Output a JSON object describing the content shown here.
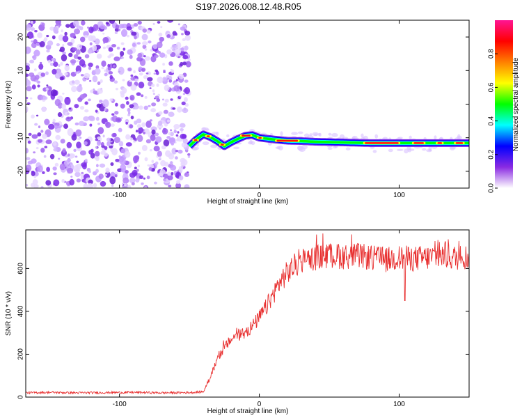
{
  "title": "S197.2026.008.12.48.R05",
  "chart_data": [
    {
      "type": "heatmap",
      "xlabel": "Height of straight line (km)",
      "ylabel": "Frequency (Hz)",
      "xlim": [
        -167,
        150
      ],
      "ylim": [
        -25,
        25
      ],
      "xticks": [
        -100,
        0,
        100
      ],
      "yticks": [
        -20,
        -10,
        0,
        10,
        20
      ],
      "noise_region_x": [
        -167,
        -50
      ],
      "signal_ridge": {
        "x": [
          -50,
          -45,
          -40,
          -35,
          -30,
          -25,
          -20,
          -15,
          -10,
          -5,
          0,
          10,
          20,
          30,
          40,
          60,
          80,
          100,
          120,
          150
        ],
        "frequency_hz": [
          -12.5,
          -10.5,
          -9.0,
          -9.8,
          -11.0,
          -12.5,
          -11.3,
          -10.3,
          -9.4,
          -9.2,
          -10.0,
          -10.5,
          -10.9,
          -11.0,
          -11.2,
          -11.4,
          -11.6,
          -11.6,
          -11.6,
          -11.6
        ]
      },
      "colorbar": {
        "label": "Normalized spectral amplitude",
        "ticks": [
          "0.0",
          "0.2",
          "0.4",
          "0.6",
          "0.8"
        ],
        "range": [
          0,
          1
        ],
        "colors": [
          "#ffffff",
          "#8a2be2",
          "#0000ff",
          "#00ffff",
          "#00ff00",
          "#ffff00",
          "#ff8000",
          "#ff0000",
          "#ff1493"
        ]
      }
    },
    {
      "type": "line",
      "xlabel": "Height of straight line (km)",
      "ylabel": "SNR (10 * v/v)",
      "xlim": [
        -167,
        150
      ],
      "ylim": [
        0,
        780
      ],
      "xticks": [
        -100,
        0,
        100
      ],
      "yticks": [
        0,
        200,
        400,
        600
      ],
      "color": "#e83030",
      "series": [
        {
          "x": [
            -167,
            -150,
            -130,
            -110,
            -90,
            -70,
            -50,
            -40,
            -35,
            -30,
            -25,
            -20,
            -15,
            -10,
            -5,
            0,
            5,
            10,
            15,
            20,
            25,
            30,
            40,
            50,
            60,
            70,
            80,
            90,
            100,
            110,
            120,
            130,
            140,
            150
          ],
          "values": [
            20,
            22,
            20,
            21,
            22,
            20,
            21,
            25,
            90,
            180,
            230,
            270,
            290,
            300,
            330,
            370,
            420,
            480,
            540,
            580,
            610,
            630,
            650,
            660,
            655,
            660,
            650,
            640,
            650,
            645,
            650,
            660,
            650,
            655
          ]
        }
      ]
    }
  ]
}
